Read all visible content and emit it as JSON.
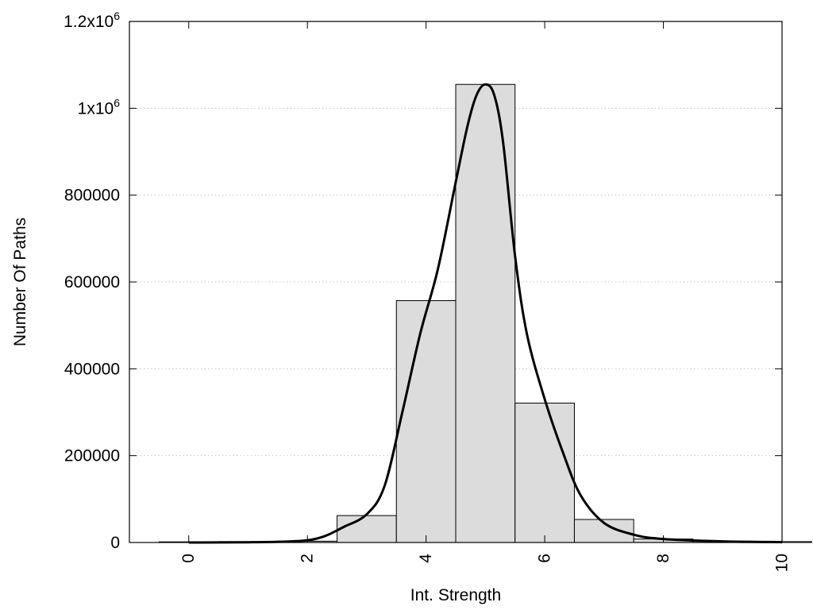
{
  "chart_data": {
    "type": "bar",
    "title": "",
    "xlabel": "Int. Strength",
    "ylabel": "Number Of Paths",
    "xlim": [
      -1,
      10
    ],
    "ylim": [
      0,
      1200000
    ],
    "grid": "horizontal dotted",
    "legend": "none",
    "x_ticks": [
      {
        "value": 0,
        "label": "0"
      },
      {
        "value": 2,
        "label": "2"
      },
      {
        "value": 4,
        "label": "4"
      },
      {
        "value": 6,
        "label": "6"
      },
      {
        "value": 8,
        "label": "8"
      },
      {
        "value": 10,
        "label": "10"
      }
    ],
    "y_ticks": [
      {
        "value": 0,
        "base": "0",
        "exp": ""
      },
      {
        "value": 200000,
        "base": "200000",
        "exp": ""
      },
      {
        "value": 400000,
        "base": "400000",
        "exp": ""
      },
      {
        "value": 600000,
        "base": "600000",
        "exp": ""
      },
      {
        "value": 800000,
        "base": "800000",
        "exp": ""
      },
      {
        "value": 1000000,
        "base": "1x10",
        "exp": "6"
      },
      {
        "value": 1200000,
        "base": "1.2x10",
        "exp": "6"
      }
    ],
    "bars": {
      "bin_width": 1,
      "centers": [
        0,
        1,
        2,
        3,
        4,
        5,
        6,
        7,
        8,
        9,
        10
      ],
      "values": [
        1500,
        2000,
        3000,
        62000,
        557000,
        1055000,
        321000,
        53000,
        8000,
        3000,
        2000
      ],
      "fill": "#dcdcdc",
      "stroke": "#000000"
    },
    "fit_curve": {
      "color": "#000000",
      "x": [
        0,
        1,
        1.5,
        2,
        2.3,
        2.6,
        3,
        3.3,
        3.6,
        3.9,
        4.2,
        4.5,
        4.7,
        4.85,
        5,
        5.15,
        5.3,
        5.5,
        5.7,
        6,
        6.3,
        6.6,
        7,
        7.5,
        8,
        9,
        10
      ],
      "y": [
        0,
        500,
        1500,
        5000,
        15000,
        35000,
        65000,
        130000,
        300000,
        480000,
        630000,
        830000,
        960000,
        1030000,
        1055000,
        1030000,
        920000,
        660000,
        480000,
        330000,
        210000,
        110000,
        45000,
        18000,
        8000,
        2500,
        800
      ]
    }
  }
}
